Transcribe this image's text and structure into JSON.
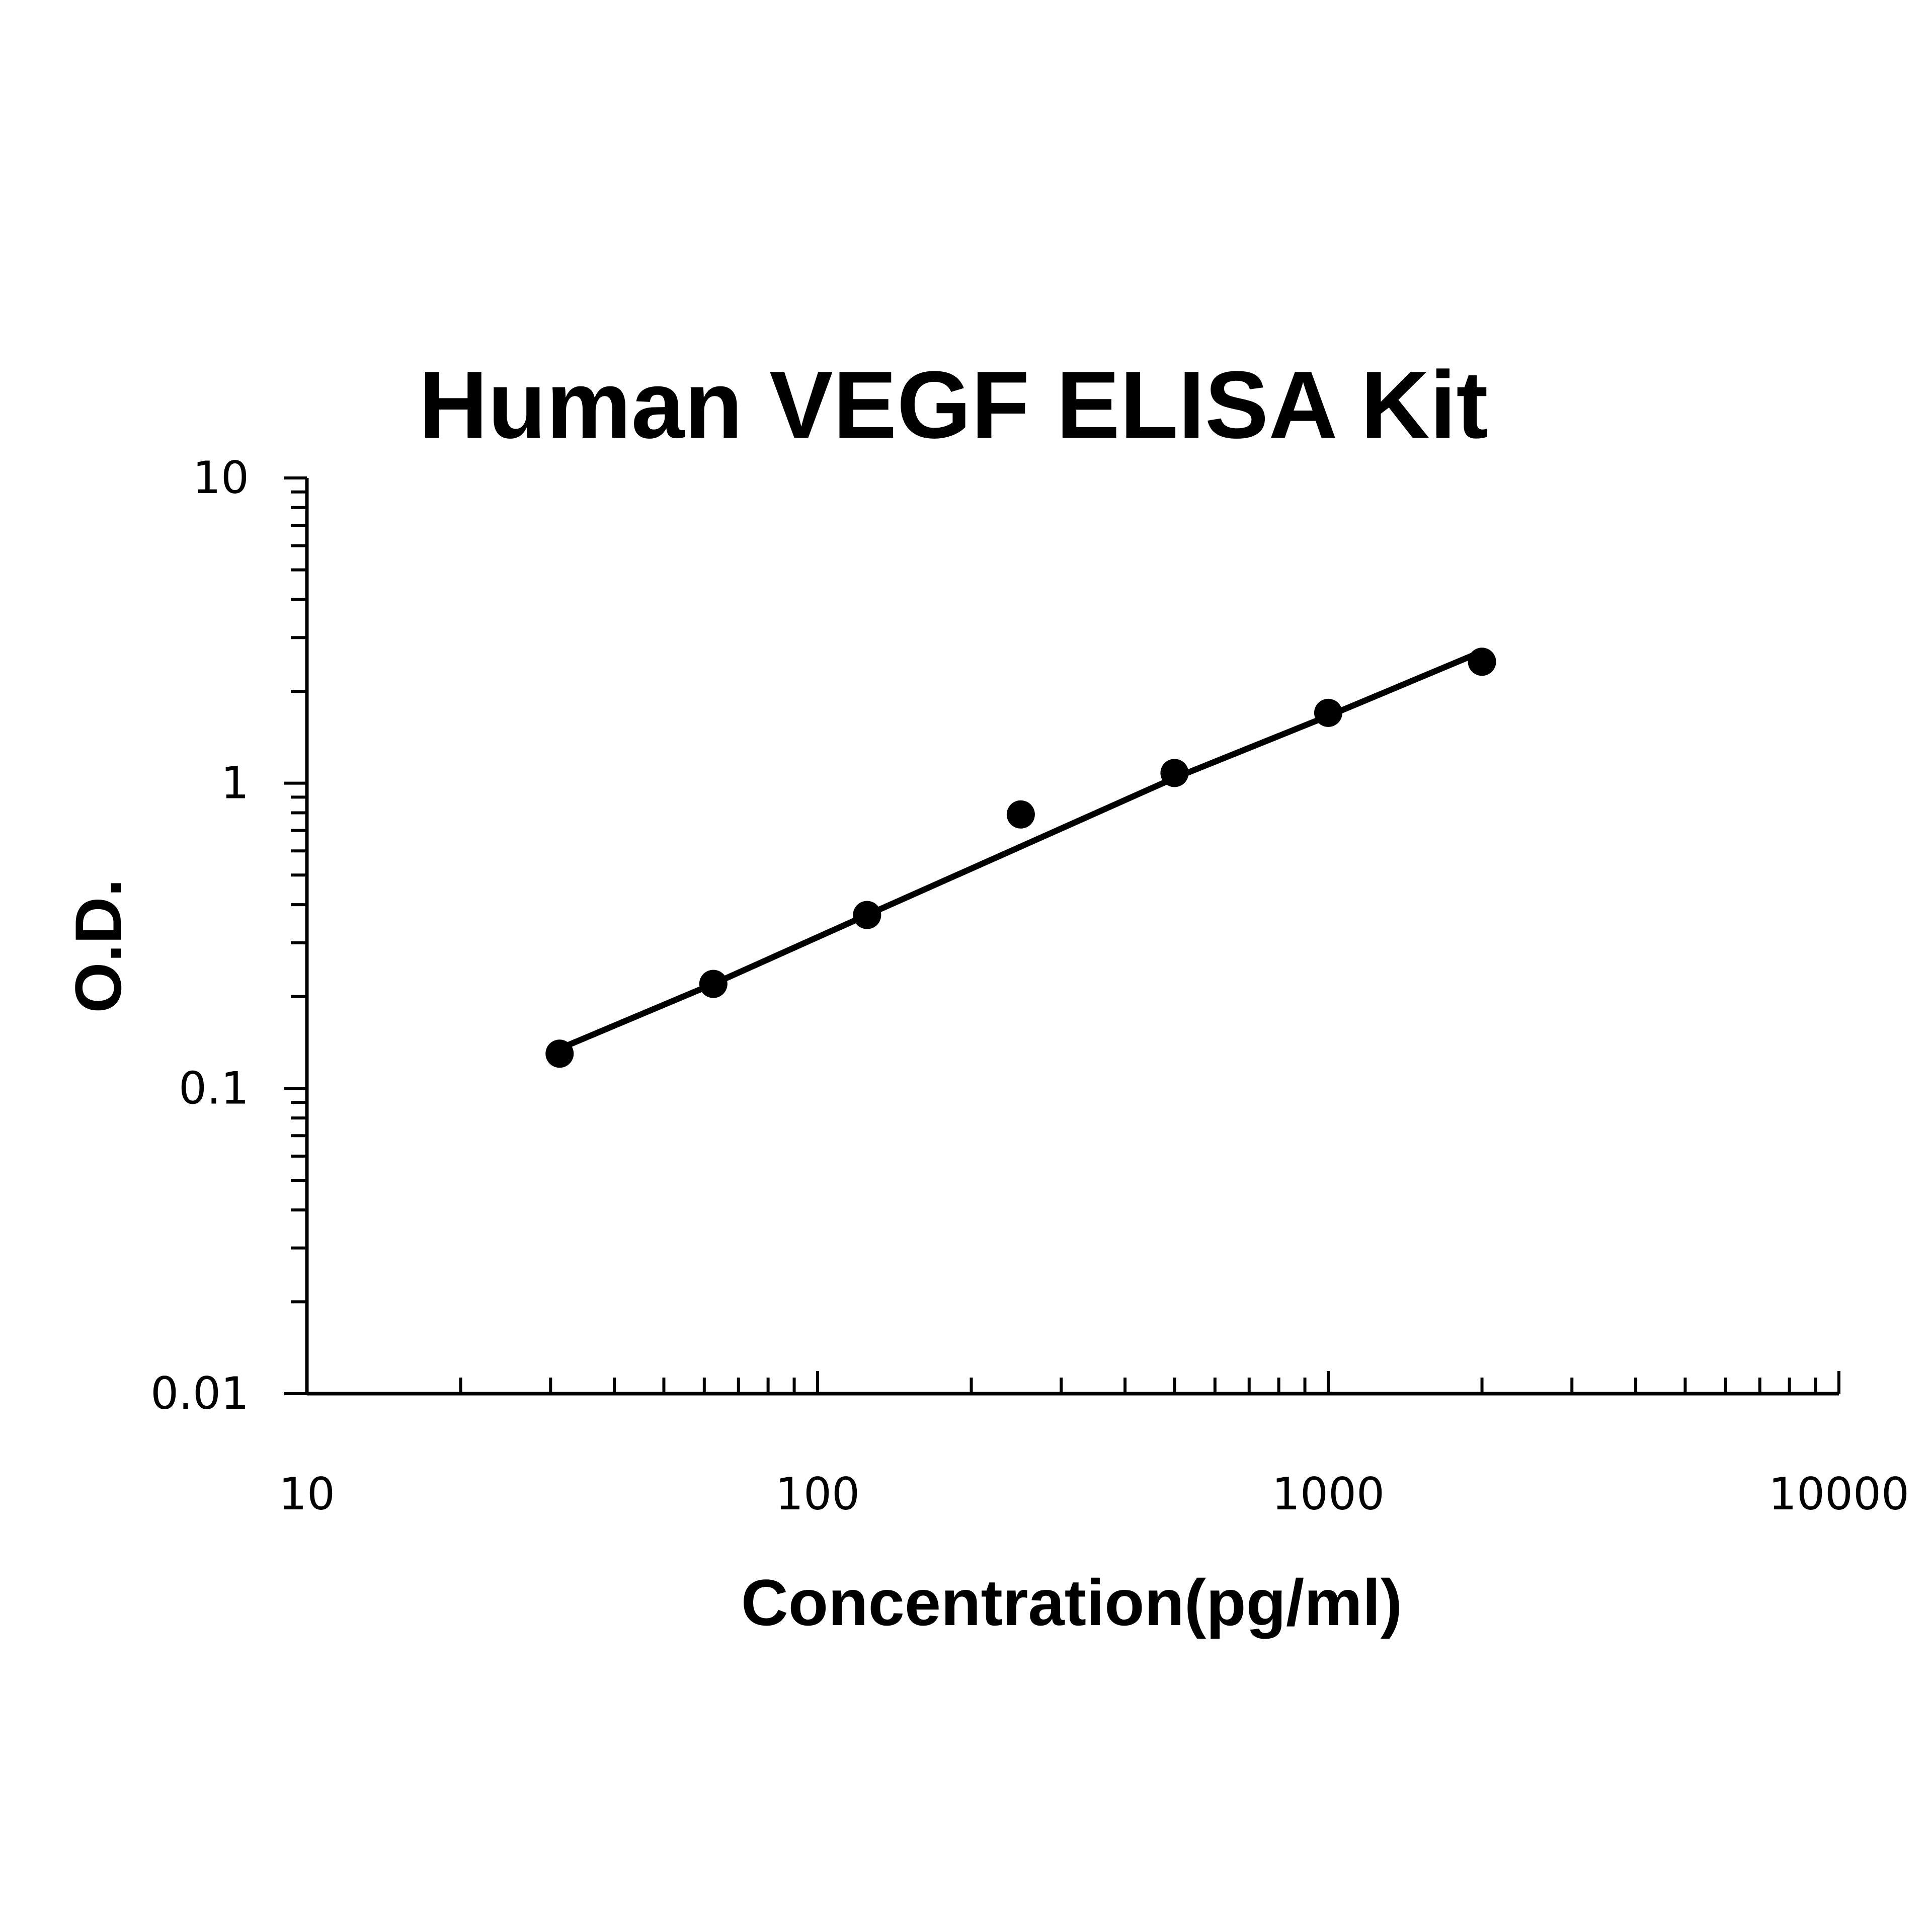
{
  "chart_data": {
    "type": "scatter",
    "title": "Human VEGF ELISA Kit",
    "xlabel": "Concentration(pg/ml)",
    "ylabel": "O.D.",
    "x_scale": "log",
    "y_scale": "log",
    "xlim": [
      10,
      10000
    ],
    "ylim": [
      0.01,
      10
    ],
    "x_ticks": [
      "10",
      "100",
      "1000",
      "10000"
    ],
    "y_ticks": [
      "0.01",
      "0.1",
      "1",
      "10"
    ],
    "grid": false,
    "legend": "none",
    "series": [
      {
        "marker": "filled-circle",
        "color": "#000000",
        "x": [
          31.25,
          62.5,
          125,
          250,
          500,
          1000,
          2000
        ],
        "y": [
          0.13,
          0.22,
          0.37,
          0.79,
          1.08,
          1.7,
          2.5
        ]
      }
    ],
    "fit_curve": {
      "type": "line",
      "color": "#000000",
      "x": [
        31.25,
        62.5,
        125,
        250,
        500,
        1000,
        2000
      ],
      "y": [
        0.135,
        0.22,
        0.37,
        0.62,
        1.04,
        1.66,
        2.7
      ]
    }
  }
}
